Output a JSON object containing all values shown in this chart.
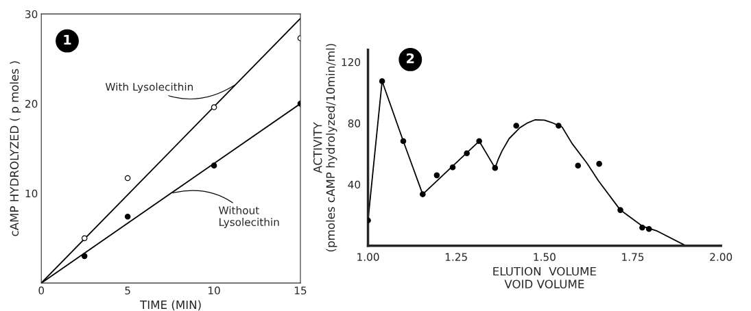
{
  "chart_data": [
    {
      "type": "scatter",
      "xlabel": "TIME (MIN)",
      "ylabel": "cAMP HYDROLYZED ( p moles )",
      "xlim": [
        0,
        15
      ],
      "ylim": [
        0,
        30
      ],
      "xticks": [
        0,
        5,
        10,
        15
      ],
      "yticks": [
        {
          "value": 0,
          "label": null
        },
        10,
        20,
        30
      ],
      "grid": false,
      "series": [
        {
          "marker": "circle",
          "color": "#ffffff",
          "x": [
            2.5,
            5,
            10,
            15
          ],
          "values": [
            5,
            11.7,
            19.6,
            27.3
          ]
        },
        {
          "marker": "circle",
          "color": "#000000",
          "x": [
            2.5,
            5,
            10,
            15
          ],
          "values": [
            3,
            7.4,
            13.1,
            20
          ]
        },
        {
          "type": "line",
          "color": "#000000",
          "x": [
            0,
            15
          ],
          "values": [
            0,
            29.5
          ]
        },
        {
          "type": "line",
          "color": "#000000",
          "x": [
            0,
            15
          ],
          "values": [
            0,
            20
          ]
        }
      ],
      "annotations": [
        "1",
        {
          "text": "With Lysolecithin",
          "x": 11.3,
          "y": 22.2
        },
        {
          "text": "Without\nLysolecithin",
          "x": 7.5,
          "y": 10
        }
      ]
    },
    {
      "type": "scatter",
      "xlabel": "ELUTION  VOLUME\nVOID VOLUME",
      "ylabel": "ACTIVITY\n(pmoles cAMP hydrolyzed/10min/ml)",
      "xlim": [
        1.0,
        2.0
      ],
      "ylim": [
        0,
        128
      ],
      "xticks": [
        {
          "value": 1.0,
          "label": "1.00"
        },
        1.25,
        {
          "value": 1.5,
          "label": "1.50"
        },
        1.75,
        {
          "value": 2.0,
          "label": "2.00"
        }
      ],
      "yticks": [
        40,
        80,
        120
      ],
      "grid": false,
      "series": [
        {
          "marker": "circle",
          "color": "#000000",
          "x": [
            1.0,
            1.04,
            1.1,
            1.155,
            1.195,
            1.24,
            1.28,
            1.315,
            1.36,
            1.42,
            1.54,
            1.595,
            1.655,
            1.715,
            1.777,
            1.796
          ],
          "values": [
            16.5,
            107.5,
            68.3,
            33.6,
            46,
            51.2,
            60.4,
            68.3,
            50.8,
            78.4,
            78.4,
            52.3,
            53.5,
            23.3,
            11.8,
            10.9
          ]
        },
        {
          "type": "line",
          "color": "#000000",
          "x": [
            1.0,
            1.04,
            1.1,
            1.155,
            1.315,
            1.36,
            1.37,
            1.38,
            1.4,
            1.43,
            1.45,
            1.473,
            1.5,
            1.52,
            1.55,
            1.578,
            1.62,
            1.653,
            1.715,
            1.777,
            1.82,
            1.9
          ],
          "values": [
            16.5,
            107.5,
            68.3,
            33.6,
            68.3,
            50.8,
            57,
            62,
            70,
            77,
            80,
            82.2,
            82,
            80.5,
            77.5,
            66.8,
            54,
            42.4,
            23.3,
            12.8,
            9.5,
            0
          ]
        }
      ],
      "annotations": [
        "2"
      ]
    }
  ]
}
